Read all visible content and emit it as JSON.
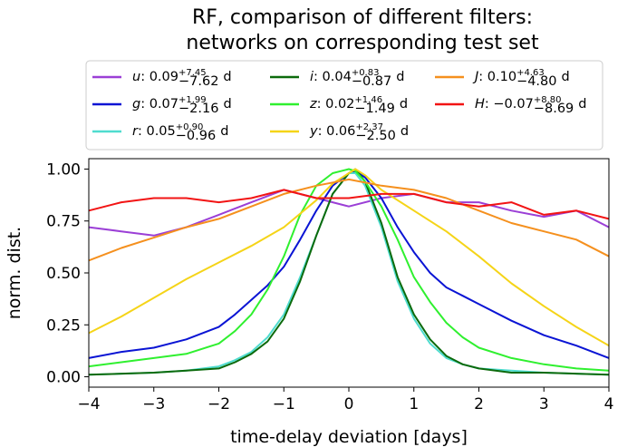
{
  "chart_data": {
    "type": "line",
    "title": [
      "RF, comparison of different filters:",
      "networks on corresponding test set"
    ],
    "xlabel": "time-delay deviation [days]",
    "ylabel": "norm. dist.",
    "xlim": [
      -4,
      4
    ],
    "ylim": [
      -0.05,
      1.05
    ],
    "xticks": [
      -4,
      -3,
      -2,
      -1,
      0,
      1,
      2,
      3,
      4
    ],
    "xtick_labels": [
      "−4",
      "−3",
      "−2",
      "−1",
      "0",
      "1",
      "2",
      "3",
      "4"
    ],
    "yticks": [
      0.0,
      0.25,
      0.5,
      0.75,
      1.0
    ],
    "ytick_labels": [
      "0.00",
      "0.25",
      "0.50",
      "0.75",
      "1.00"
    ],
    "legend_position": "top",
    "grid": false,
    "series": [
      {
        "name": "u",
        "legend": {
          "value": "0.09",
          "plus": "+7.45",
          "minus": "−7.62",
          "unit": "d"
        },
        "color": "#9b3fd6",
        "x": [
          -4,
          -3.5,
          -3,
          -2.5,
          -2,
          -1.5,
          -1,
          -0.5,
          0,
          0.5,
          1,
          1.5,
          2,
          2.5,
          3,
          3.5,
          4
        ],
        "y": [
          0.72,
          0.7,
          0.68,
          0.72,
          0.78,
          0.84,
          0.9,
          0.86,
          0.82,
          0.86,
          0.88,
          0.84,
          0.84,
          0.8,
          0.77,
          0.8,
          0.72
        ]
      },
      {
        "name": "g",
        "legend": {
          "value": "0.07",
          "plus": "+1.99",
          "minus": "−2.16",
          "unit": "d"
        },
        "color": "#0a14d4",
        "x": [
          -4,
          -3.5,
          -3,
          -2.5,
          -2,
          -1.75,
          -1.5,
          -1.25,
          -1,
          -0.75,
          -0.5,
          -0.25,
          0,
          0.1,
          0.25,
          0.5,
          0.75,
          1,
          1.25,
          1.5,
          1.75,
          2,
          2.5,
          3,
          3.5,
          4
        ],
        "y": [
          0.09,
          0.12,
          0.14,
          0.18,
          0.24,
          0.3,
          0.37,
          0.44,
          0.53,
          0.66,
          0.8,
          0.92,
          0.98,
          0.99,
          0.96,
          0.86,
          0.72,
          0.6,
          0.5,
          0.43,
          0.39,
          0.35,
          0.27,
          0.2,
          0.15,
          0.09
        ]
      },
      {
        "name": "r",
        "legend": {
          "value": "0.05",
          "plus": "+0.90",
          "minus": "−0.96",
          "unit": "d"
        },
        "color": "#4fdccf",
        "x": [
          -4,
          -3,
          -2.5,
          -2,
          -1.75,
          -1.5,
          -1.25,
          -1,
          -0.75,
          -0.5,
          -0.25,
          0,
          0.1,
          0.25,
          0.5,
          0.75,
          1,
          1.25,
          1.5,
          1.75,
          2,
          2.5,
          3,
          4
        ],
        "y": [
          0.01,
          0.02,
          0.03,
          0.05,
          0.08,
          0.12,
          0.19,
          0.3,
          0.48,
          0.68,
          0.88,
          0.98,
          0.98,
          0.92,
          0.72,
          0.46,
          0.28,
          0.16,
          0.09,
          0.06,
          0.04,
          0.03,
          0.02,
          0.01
        ]
      },
      {
        "name": "i",
        "legend": {
          "value": "0.04",
          "plus": "+0.83",
          "minus": "−0.87",
          "unit": "d"
        },
        "color": "#0c6a0c",
        "x": [
          -4,
          -3,
          -2.5,
          -2,
          -1.75,
          -1.5,
          -1.25,
          -1,
          -0.75,
          -0.5,
          -0.25,
          0,
          0.1,
          0.25,
          0.5,
          0.75,
          1,
          1.25,
          1.5,
          1.75,
          2,
          2.5,
          3,
          4
        ],
        "y": [
          0.01,
          0.02,
          0.03,
          0.04,
          0.07,
          0.11,
          0.17,
          0.28,
          0.46,
          0.68,
          0.88,
          0.98,
          1.0,
          0.94,
          0.74,
          0.48,
          0.3,
          0.18,
          0.1,
          0.06,
          0.04,
          0.02,
          0.02,
          0.01
        ]
      },
      {
        "name": "z",
        "legend": {
          "value": "0.02",
          "plus": "+1.46",
          "minus": "−1.49",
          "unit": "d"
        },
        "color": "#2ff02f",
        "x": [
          -4,
          -3.5,
          -3,
          -2.5,
          -2,
          -1.75,
          -1.5,
          -1.25,
          -1,
          -0.75,
          -0.5,
          -0.25,
          0,
          0.1,
          0.25,
          0.5,
          0.75,
          1,
          1.25,
          1.5,
          1.75,
          2,
          2.5,
          3,
          3.5,
          4
        ],
        "y": [
          0.05,
          0.07,
          0.09,
          0.11,
          0.16,
          0.22,
          0.3,
          0.42,
          0.58,
          0.78,
          0.92,
          0.98,
          1.0,
          0.99,
          0.94,
          0.82,
          0.66,
          0.48,
          0.36,
          0.26,
          0.19,
          0.14,
          0.09,
          0.06,
          0.04,
          0.03
        ]
      },
      {
        "name": "y",
        "legend": {
          "value": "0.06",
          "plus": "+2.37",
          "minus": "−2.50",
          "unit": "d"
        },
        "color": "#f5d418",
        "x": [
          -4,
          -3.5,
          -3,
          -2.5,
          -2,
          -1.5,
          -1,
          -0.5,
          -0.25,
          0,
          0.1,
          0.25,
          0.5,
          1,
          1.5,
          2,
          2.5,
          3,
          3.5,
          4
        ],
        "y": [
          0.21,
          0.29,
          0.38,
          0.47,
          0.55,
          0.63,
          0.72,
          0.85,
          0.93,
          0.98,
          1.0,
          0.97,
          0.9,
          0.8,
          0.7,
          0.58,
          0.45,
          0.34,
          0.24,
          0.15
        ]
      },
      {
        "name": "J",
        "legend": {
          "value": "0.10",
          "plus": "+4.63",
          "minus": "−4.80",
          "unit": "d"
        },
        "color": "#f5901e",
        "x": [
          -4,
          -3.5,
          -3,
          -2.5,
          -2,
          -1.5,
          -1,
          -0.5,
          0,
          0.5,
          1,
          1.5,
          2,
          2.5,
          3,
          3.5,
          4
        ],
        "y": [
          0.56,
          0.62,
          0.67,
          0.72,
          0.76,
          0.82,
          0.88,
          0.92,
          0.95,
          0.92,
          0.9,
          0.86,
          0.8,
          0.74,
          0.7,
          0.66,
          0.58
        ]
      },
      {
        "name": "H",
        "legend": {
          "value": "−0.07",
          "plus": "+8.80",
          "minus": "−8.69",
          "unit": "d"
        },
        "color": "#f21414",
        "x": [
          -4,
          -3.5,
          -3,
          -2.5,
          -2,
          -1.5,
          -1,
          -0.5,
          0,
          0.5,
          1,
          1.5,
          2,
          2.5,
          3,
          3.5,
          4
        ],
        "y": [
          0.8,
          0.84,
          0.86,
          0.86,
          0.84,
          0.86,
          0.9,
          0.86,
          0.86,
          0.88,
          0.88,
          0.84,
          0.82,
          0.84,
          0.78,
          0.8,
          0.76
        ]
      }
    ]
  }
}
